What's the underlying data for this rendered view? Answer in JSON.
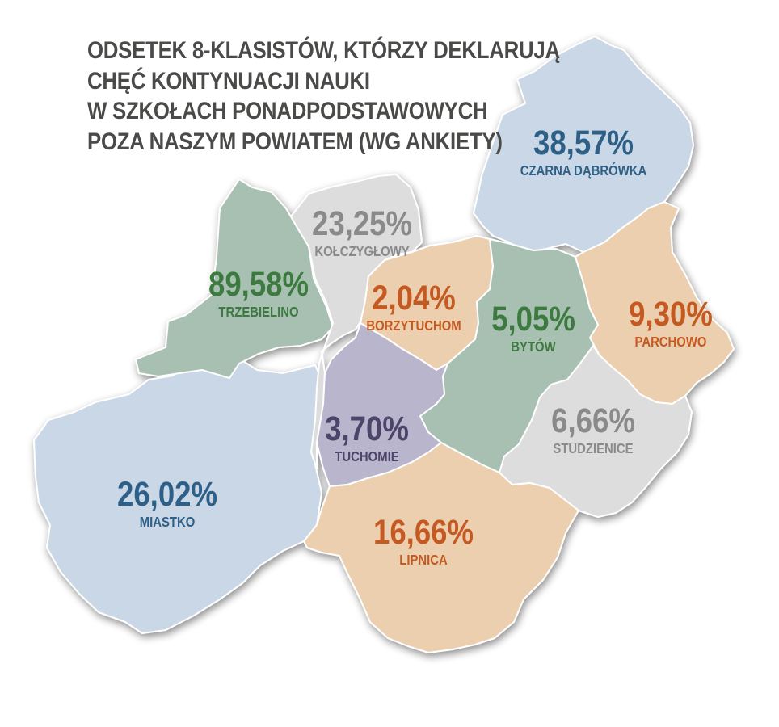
{
  "title_lines": [
    "ODSETEK 8-KLASISTÓW, KTÓRZY DEKLARUJĄ",
    "CHĘĆ KONTYNUACJI NAUKI",
    "W SZKOŁACH PONADPODSTAWOWYCH",
    "POZA NASZYM POWIATEM (WG ANKIETY)"
  ],
  "colors": {
    "title": "#4a4a48",
    "blue_fill": "#c9d7e6",
    "blue_text": "#2e5f86",
    "green_fill": "#a7c0b2",
    "green_text": "#3d7a3f",
    "gray_fill": "#dddddd",
    "gray_text": "#8a8a8a",
    "orange_fill": "#eccfae",
    "orange_text": "#c45a21",
    "purple_fill": "#b9b5cd",
    "purple_text": "#4c4469",
    "border": "#ffffff"
  },
  "regions": {
    "czarna_dabrowka": {
      "name": "CZARNA DĄBRÓWKA",
      "value": "38,57%",
      "fill": "#c9d7e6",
      "text_color": "#2e5f86",
      "icon": "region-shape"
    },
    "trzebielino": {
      "name": "TRZEBIELINO",
      "value": "89,58%",
      "fill": "#a7c0b2",
      "text_color": "#3d7a3f",
      "icon": "region-shape"
    },
    "kolczyglowy": {
      "name": "KOŁCZYGŁOWY",
      "value": "23,25%",
      "fill": "#dddddd",
      "text_color": "#8a8a8a",
      "icon": "region-shape"
    },
    "borzytuchom": {
      "name": "BORZYTUCHOM",
      "value": "2,04%",
      "fill": "#eccfae",
      "text_color": "#c45a21",
      "icon": "region-shape"
    },
    "bytow": {
      "name": "BYTÓW",
      "value": "5,05%",
      "fill": "#a7c0b2",
      "text_color": "#3d7a3f",
      "icon": "region-shape"
    },
    "parchowo": {
      "name": "PARCHOWO",
      "value": "9,30%",
      "fill": "#eccfae",
      "text_color": "#c45a21",
      "icon": "region-shape"
    },
    "studzienice": {
      "name": "STUDZIENICE",
      "value": "6,66%",
      "fill": "#dddddd",
      "text_color": "#8a8a8a",
      "icon": "region-shape"
    },
    "tuchomie": {
      "name": "TUCHOMIE",
      "value": "3,70%",
      "fill": "#b9b5cd",
      "text_color": "#4c4469",
      "icon": "region-shape"
    },
    "miastko": {
      "name": "MIASTKO",
      "value": "26,02%",
      "fill": "#c9d7e6",
      "text_color": "#2e5f86",
      "icon": "region-shape"
    },
    "lipnica": {
      "name": "LIPNICA",
      "value": "16,66%",
      "fill": "#eccfae",
      "text_color": "#c45a21",
      "icon": "region-shape"
    }
  }
}
